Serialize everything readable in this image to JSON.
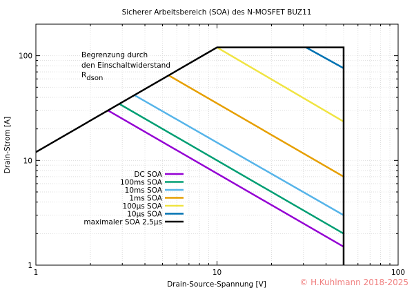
{
  "chart_data": {
    "type": "line",
    "title": "Sicherer Arbeitsbereich (SOA) des N-MOSFET BUZ11",
    "xlabel": "Drain-Source-Spannung [V]",
    "ylabel": "Drain-Strom [A]",
    "xscale": "log",
    "yscale": "log",
    "xlim": [
      1,
      100
    ],
    "ylim": [
      1,
      200
    ],
    "grid": true,
    "legend_placement": "bottom-left",
    "xticks": [
      {
        "v": 1,
        "label": "1"
      },
      {
        "v": 10,
        "label": "10"
      },
      {
        "v": 100,
        "label": "100"
      }
    ],
    "yticks": [
      {
        "v": 1,
        "label": "1"
      },
      {
        "v": 10,
        "label": "10"
      },
      {
        "v": 100,
        "label": "100"
      }
    ],
    "annotation": {
      "lines": [
        "Begrenzung durch",
        "den Einschaltwiderstand"
      ],
      "r_main": "R",
      "r_sub": "dson"
    },
    "series": [
      {
        "name": "DC SOA",
        "color": "#9400d3",
        "points": [
          [
            2.5,
            30
          ],
          [
            50,
            1.5
          ]
        ]
      },
      {
        "name": "100ms SOA",
        "color": "#009e73",
        "points": [
          [
            2.9,
            34.5
          ],
          [
            50,
            2
          ]
        ]
      },
      {
        "name": "10ms SOA",
        "color": "#56b4e9",
        "points": [
          [
            3.5,
            42
          ],
          [
            50,
            3
          ]
        ]
      },
      {
        "name": "1ms SOA",
        "color": "#e69f00",
        "points": [
          [
            5.4,
            65
          ],
          [
            50,
            7
          ]
        ]
      },
      {
        "name": "100µs SOA",
        "color": "#f0e442",
        "points": [
          [
            10,
            120
          ],
          [
            50,
            23.5
          ]
        ]
      },
      {
        "name": "10µs SOA",
        "color": "#0072b2",
        "points": [
          [
            31,
            120
          ],
          [
            50,
            76
          ]
        ]
      },
      {
        "name": "maximaler SOA 2,5µs",
        "color": "#000000",
        "points": [
          [
            1,
            12
          ],
          [
            10,
            120
          ],
          [
            50,
            120
          ],
          [
            50,
            1
          ]
        ]
      }
    ]
  },
  "watermark": "© H.Kuhlmann 2018-2025"
}
